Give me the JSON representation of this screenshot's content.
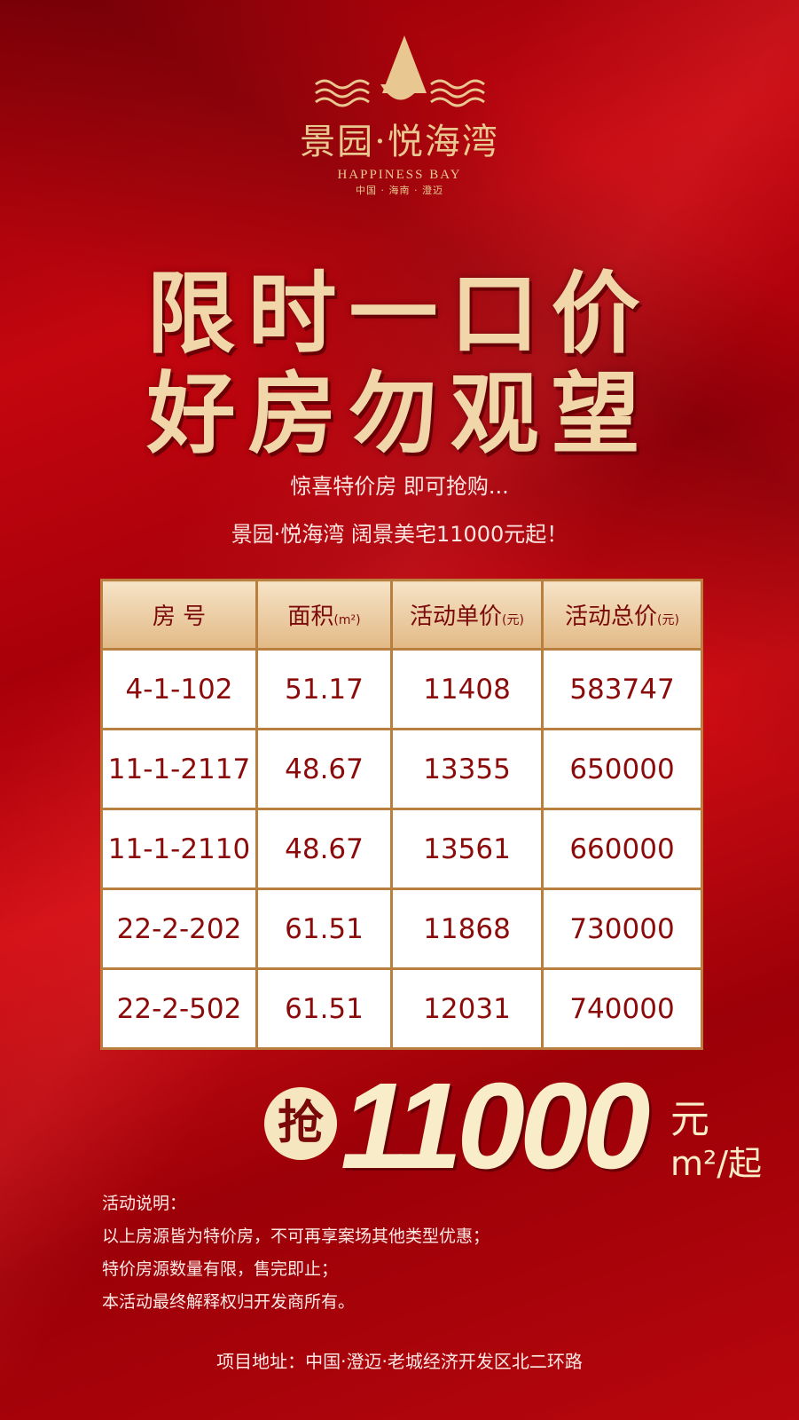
{
  "logo": {
    "name_cn": "景园·悦海湾",
    "name_en": "HAPPINESS BAY",
    "location": "中国 · 海南 · 澄迈"
  },
  "headline": {
    "line1": "限时一口价",
    "line2": "好房勿观望"
  },
  "subtitle": {
    "line1": "惊喜特价房 即可抢购...",
    "line2": "景园·悦海湾 阔景美宅11000元起！"
  },
  "table": {
    "headers": [
      {
        "label": "房 号",
        "unit": ""
      },
      {
        "label": "面积",
        "unit": "(m²)"
      },
      {
        "label": "活动单价",
        "unit": "(元)"
      },
      {
        "label": "活动总价",
        "unit": "(元)"
      }
    ],
    "rows": [
      [
        "4-1-102",
        "51.17",
        "11408",
        "583747"
      ],
      [
        "11-1-2117",
        "48.67",
        "13355",
        "650000"
      ],
      [
        "11-1-2110",
        "48.67",
        "13561",
        "660000"
      ],
      [
        "22-2-202",
        "61.51",
        "11868",
        "730000"
      ],
      [
        "22-2-502",
        "61.51",
        "12031",
        "740000"
      ]
    ]
  },
  "promo": {
    "grab": "抢",
    "price": "11000",
    "yuan": "元",
    "unit": "m²/起"
  },
  "notes": {
    "title": "活动说明：",
    "lines": [
      "以上房源皆为特价房，不可再享案场其他类型优惠；",
      "特价房源数量有限，售完即止；",
      "本活动最终解释权归开发商所有。"
    ]
  },
  "address": "项目地址：中国·澄迈·老城经济开发区北二环路",
  "colors": {
    "background": "#b7060d",
    "gold": "#e8c890",
    "table_text": "#8b0a0a"
  }
}
